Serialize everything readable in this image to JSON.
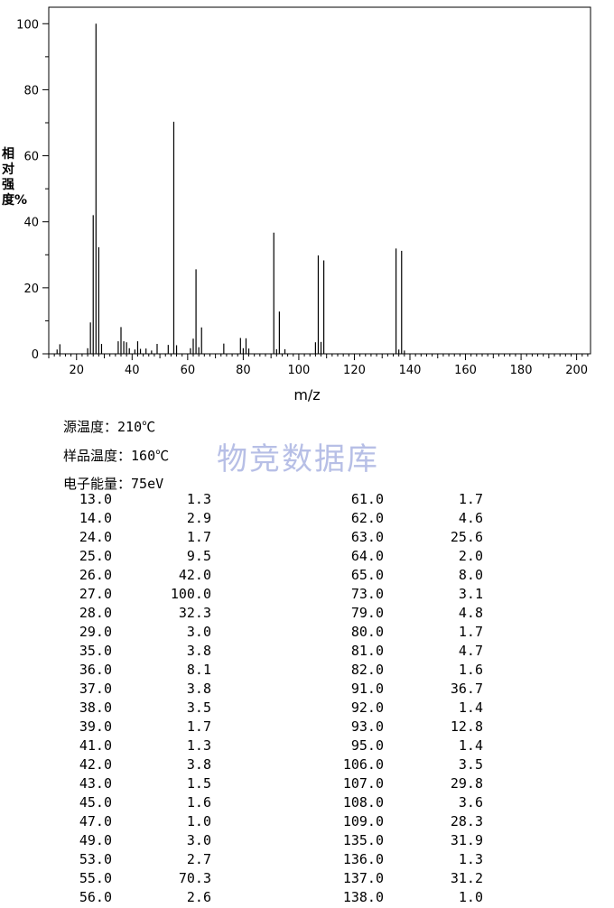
{
  "chart_data": {
    "type": "bar",
    "title": "",
    "xlabel": "m/z",
    "ylabel": "相对强度%",
    "xlim": [
      10,
      205
    ],
    "ylim": [
      0,
      105
    ],
    "x_ticks": [
      20,
      40,
      60,
      80,
      100,
      120,
      140,
      160,
      180,
      200
    ],
    "y_ticks": [
      0,
      20,
      40,
      60,
      80,
      100
    ],
    "grid": false,
    "points": [
      [
        13.0,
        1.3
      ],
      [
        14.0,
        2.9
      ],
      [
        24.0,
        1.7
      ],
      [
        25.0,
        9.5
      ],
      [
        26.0,
        42.0
      ],
      [
        27.0,
        100.0
      ],
      [
        28.0,
        32.3
      ],
      [
        29.0,
        3.0
      ],
      [
        35.0,
        3.8
      ],
      [
        36.0,
        8.1
      ],
      [
        37.0,
        3.8
      ],
      [
        38.0,
        3.5
      ],
      [
        39.0,
        1.7
      ],
      [
        41.0,
        1.3
      ],
      [
        42.0,
        3.8
      ],
      [
        43.0,
        1.5
      ],
      [
        45.0,
        1.6
      ],
      [
        47.0,
        1.0
      ],
      [
        49.0,
        3.0
      ],
      [
        53.0,
        2.7
      ],
      [
        55.0,
        70.3
      ],
      [
        56.0,
        2.6
      ],
      [
        61.0,
        1.7
      ],
      [
        62.0,
        4.6
      ],
      [
        63.0,
        25.6
      ],
      [
        64.0,
        2.0
      ],
      [
        65.0,
        8.0
      ],
      [
        73.0,
        3.1
      ],
      [
        79.0,
        4.8
      ],
      [
        80.0,
        1.7
      ],
      [
        81.0,
        4.7
      ],
      [
        82.0,
        1.6
      ],
      [
        91.0,
        36.7
      ],
      [
        92.0,
        1.4
      ],
      [
        93.0,
        12.8
      ],
      [
        95.0,
        1.4
      ],
      [
        106.0,
        3.5
      ],
      [
        107.0,
        29.8
      ],
      [
        108.0,
        3.6
      ],
      [
        109.0,
        28.3
      ],
      [
        135.0,
        31.9
      ],
      [
        136.0,
        1.3
      ],
      [
        137.0,
        31.2
      ],
      [
        138.0,
        1.0
      ]
    ]
  },
  "conditions": [
    {
      "label": "源温度：",
      "value": "210℃"
    },
    {
      "label": "样品温度：",
      "value": "160℃"
    },
    {
      "label": "电子能量：",
      "value": "75eV"
    }
  ],
  "watermark": "物竞数据库",
  "peak_table": {
    "left": [
      [
        "13.0",
        "1.3"
      ],
      [
        "14.0",
        "2.9"
      ],
      [
        "24.0",
        "1.7"
      ],
      [
        "25.0",
        "9.5"
      ],
      [
        "26.0",
        "42.0"
      ],
      [
        "27.0",
        "100.0"
      ],
      [
        "28.0",
        "32.3"
      ],
      [
        "29.0",
        "3.0"
      ],
      [
        "35.0",
        "3.8"
      ],
      [
        "36.0",
        "8.1"
      ],
      [
        "37.0",
        "3.8"
      ],
      [
        "38.0",
        "3.5"
      ],
      [
        "39.0",
        "1.7"
      ],
      [
        "41.0",
        "1.3"
      ],
      [
        "42.0",
        "3.8"
      ],
      [
        "43.0",
        "1.5"
      ],
      [
        "45.0",
        "1.6"
      ],
      [
        "47.0",
        "1.0"
      ],
      [
        "49.0",
        "3.0"
      ],
      [
        "53.0",
        "2.7"
      ],
      [
        "55.0",
        "70.3"
      ],
      [
        "56.0",
        "2.6"
      ]
    ],
    "right": [
      [
        "61.0",
        "1.7"
      ],
      [
        "62.0",
        "4.6"
      ],
      [
        "63.0",
        "25.6"
      ],
      [
        "64.0",
        "2.0"
      ],
      [
        "65.0",
        "8.0"
      ],
      [
        "73.0",
        "3.1"
      ],
      [
        "79.0",
        "4.8"
      ],
      [
        "80.0",
        "1.7"
      ],
      [
        "81.0",
        "4.7"
      ],
      [
        "82.0",
        "1.6"
      ],
      [
        "91.0",
        "36.7"
      ],
      [
        "92.0",
        "1.4"
      ],
      [
        "93.0",
        "12.8"
      ],
      [
        "95.0",
        "1.4"
      ],
      [
        "106.0",
        "3.5"
      ],
      [
        "107.0",
        "29.8"
      ],
      [
        "108.0",
        "3.6"
      ],
      [
        "109.0",
        "28.3"
      ],
      [
        "135.0",
        "31.9"
      ],
      [
        "136.0",
        "1.3"
      ],
      [
        "137.0",
        "31.2"
      ],
      [
        "138.0",
        "1.0"
      ]
    ]
  }
}
